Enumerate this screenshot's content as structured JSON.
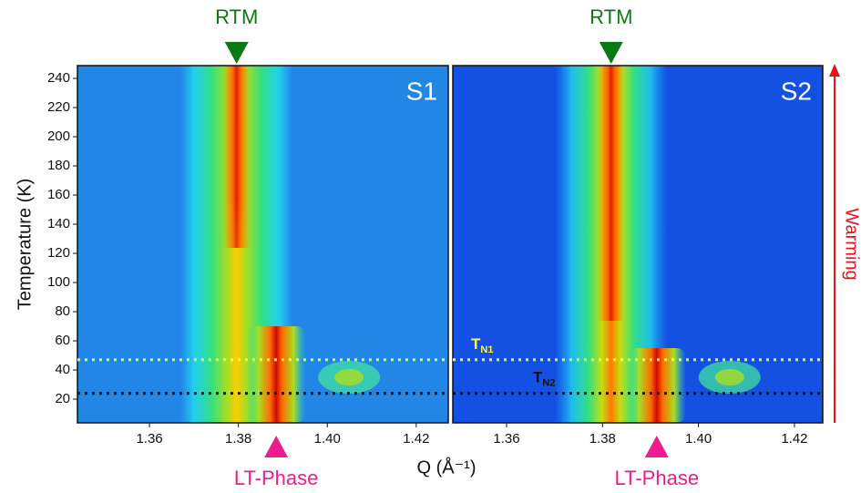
{
  "ylabel": "Temperature (K)",
  "xlabel": "Q (Å⁻¹)",
  "side_label": "Warming",
  "chart_data": [
    {
      "type": "contour",
      "title": "S1",
      "background": "#2186e6",
      "xlim": [
        1.3438,
        1.4272
      ],
      "xticks": [
        1.36,
        1.38,
        {
          "value": 1.4,
          "label": "1.40"
        },
        1.42
      ],
      "ylim": [
        3.75,
        248.75
      ],
      "yticks": [
        20,
        40,
        60,
        80,
        100,
        120,
        140,
        160,
        180,
        200,
        220,
        240
      ],
      "annotations": [
        {
          "label": "RTM",
          "x": 1.3796,
          "position": "top",
          "color": "#0b7a12"
        },
        {
          "label": "LT-Phase",
          "x": 1.3885,
          "position": "bottom",
          "color": "#ee1c8c"
        }
      ],
      "hlines": [
        {
          "y": 47,
          "color": "#ffff33"
        },
        {
          "y": 24,
          "color": "#111111"
        }
      ]
    },
    {
      "type": "contour",
      "title": "S2",
      "background": "#1450e2",
      "xlim": [
        1.3488,
        1.4259
      ],
      "xticks": [
        1.36,
        1.38,
        {
          "value": 1.4,
          "label": "1.40"
        },
        1.42
      ],
      "ylim": [
        3.75,
        248.75
      ],
      "annotations": [
        {
          "label": "RTM",
          "x": 1.3818,
          "position": "top",
          "color": "#0b7a12"
        },
        {
          "label": "LT-Phase",
          "x": 1.3913,
          "position": "bottom",
          "color": "#ee1c8c"
        }
      ],
      "hlines": [
        {
          "y": 47,
          "color": "#ffff33",
          "label": {
            "text": "T",
            "sub": "N1"
          }
        },
        {
          "y": 24,
          "color": "#111111",
          "label": {
            "text": "T",
            "sub": "N2"
          }
        }
      ]
    }
  ]
}
